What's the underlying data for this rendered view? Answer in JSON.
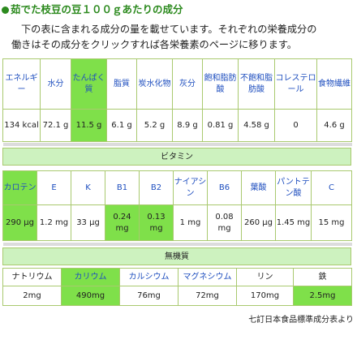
{
  "title": "茹でた枝豆の豆１００ｇあたりの成分",
  "intro": {
    "line1": "下の表に含まれる成分の量を載せています。それぞれの栄養成分の",
    "line2": "働きはその成分をクリックすれば各栄養素のページに移ります。"
  },
  "main_table": {
    "headers": [
      "エネルギー",
      "水分",
      "たんぱく質",
      "脂質",
      "炭水化物",
      "灰分",
      "飽和脂肪酸",
      "不飽和脂肪酸",
      "コレステロール",
      "食物繊維"
    ],
    "values": [
      "134 kcal",
      "72.1 g",
      "11.5 g",
      "6.1 g",
      "5.2 g",
      "8.9 g",
      "0.81 g",
      "4.58 g",
      "0",
      "4.6 g"
    ]
  },
  "vitamin_section": {
    "label": "ビタミン",
    "headers": [
      "カロテン",
      "E",
      "K",
      "B1",
      "B2",
      "ナイアシン",
      "B6",
      "葉酸",
      "パントテン酸",
      "C"
    ],
    "values": [
      "290 μg",
      "1.2 mg",
      "33 μg",
      "0.24 mg",
      "0.13 mg",
      "1 mg",
      "0.08 mg",
      "260 μg",
      "1.45 mg",
      "15 mg"
    ]
  },
  "mineral_section": {
    "label": "無機質",
    "headers": [
      "ナトリウム",
      "カリウム",
      "カルシウム",
      "マグネシウム",
      "リン",
      "鉄"
    ],
    "values": [
      "2mg",
      "490mg",
      "76mg",
      "72mg",
      "170mg",
      "2.5mg"
    ]
  },
  "source_note": "七訂日本食品標準成分表より",
  "colors": {
    "title": "#2c8a1e",
    "link": "#1f4fbf",
    "highlight": "#7fe04a",
    "band": "#cdf2bf",
    "border": "#a9c96f"
  }
}
